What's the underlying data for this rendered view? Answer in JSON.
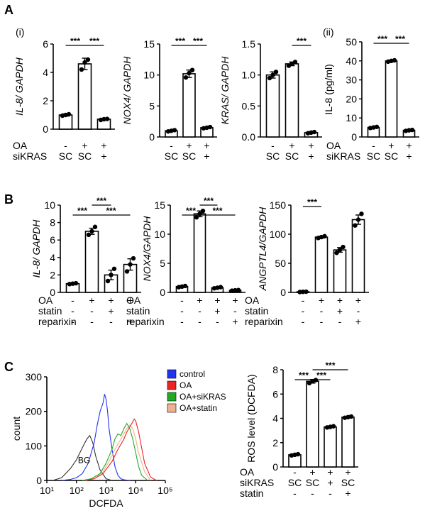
{
  "figure": {
    "labels": {
      "A": "A",
      "B": "B",
      "C": "C"
    },
    "sublabels": {
      "i": "(i)",
      "ii": "(ii)"
    }
  },
  "chart_data": [
    {
      "id": "A1",
      "type": "bar",
      "ylabel": "IL-8/ GAPDH",
      "ylabel_italic": true,
      "ylim": [
        0,
        6
      ],
      "yticks": [
        "0",
        "2",
        "4",
        "6"
      ],
      "values": [
        1.0,
        4.6,
        0.7
      ],
      "errors": [
        0.08,
        0.4,
        0.06
      ],
      "points": [
        [
          0.95,
          1.0,
          1.05
        ],
        [
          4.2,
          4.7,
          4.9
        ],
        [
          0.65,
          0.7,
          0.72
        ]
      ],
      "rows": [
        {
          "label": "OA",
          "values": [
            "-",
            "+",
            "+"
          ]
        },
        {
          "label": "siKRAS",
          "values": [
            "SC",
            "SC",
            "+"
          ]
        }
      ],
      "sig": [
        {
          "from": 0,
          "to": 1,
          "text": "***",
          "level": 0
        },
        {
          "from": 1,
          "to": 2,
          "text": "***",
          "level": 0
        }
      ]
    },
    {
      "id": "A2",
      "type": "bar",
      "ylabel": "NOX4/ GAPDH",
      "ylabel_italic": true,
      "ylim": [
        0,
        15
      ],
      "yticks": [
        "0",
        "5",
        "10",
        "15"
      ],
      "values": [
        1.0,
        10.2,
        1.5
      ],
      "errors": [
        0.1,
        0.6,
        0.1
      ],
      "points": [
        [
          0.9,
          1.0,
          1.1
        ],
        [
          9.6,
          10.3,
          10.8
        ],
        [
          1.4,
          1.5,
          1.6
        ]
      ],
      "rows": [
        {
          "label": "OA",
          "values": [
            "-",
            "+",
            "+"
          ]
        },
        {
          "label": "siKRAS",
          "values": [
            "SC",
            "SC",
            "+"
          ]
        }
      ],
      "sig": [
        {
          "from": 0,
          "to": 1,
          "text": "***",
          "level": 0
        },
        {
          "from": 1,
          "to": 2,
          "text": "***",
          "level": 0
        }
      ]
    },
    {
      "id": "A3",
      "type": "bar",
      "ylabel": "KRAS/ GAPDH",
      "ylabel_italic": true,
      "ylim": [
        0,
        1.5
      ],
      "yticks": [
        "0.0",
        "0.5",
        "1.0",
        "1.5"
      ],
      "values": [
        1.0,
        1.18,
        0.07
      ],
      "errors": [
        0.05,
        0.03,
        0.01
      ],
      "points": [
        [
          0.95,
          1.0,
          1.05
        ],
        [
          1.15,
          1.18,
          1.21
        ],
        [
          0.06,
          0.07,
          0.08
        ]
      ],
      "rows": [
        {
          "label": "OA",
          "values": [
            "-",
            "+",
            "+"
          ]
        },
        {
          "label": "siKRAS",
          "values": [
            "SC",
            "SC",
            "+"
          ]
        }
      ],
      "sig": [
        {
          "from": 1,
          "to": 2,
          "text": "***",
          "level": 0
        }
      ]
    },
    {
      "id": "A4",
      "type": "bar",
      "ylabel": "IL-8 (pg/ml)",
      "ylabel_italic": false,
      "ylim": [
        0,
        50
      ],
      "yticks": [
        "0",
        "10",
        "20",
        "30",
        "40",
        "50"
      ],
      "values": [
        5.0,
        40.0,
        3.5
      ],
      "errors": [
        0.4,
        0.4,
        0.3
      ],
      "points": [
        [
          4.7,
          5.0,
          5.3
        ],
        [
          39.6,
          40.0,
          40.3
        ],
        [
          3.2,
          3.5,
          3.7
        ]
      ],
      "rows": [
        {
          "label": "OA",
          "values": [
            "-",
            "+",
            "+"
          ]
        },
        {
          "label": "siKRAS",
          "values": [
            "SC",
            "SC",
            "+"
          ]
        }
      ],
      "sig": [
        {
          "from": 0,
          "to": 1,
          "text": "***",
          "level": 0
        },
        {
          "from": 1,
          "to": 2,
          "text": "***",
          "level": 0
        }
      ]
    },
    {
      "id": "B1",
      "type": "bar",
      "ylabel": "IL-8/ GAPDH",
      "ylabel_italic": true,
      "ylim": [
        0,
        10
      ],
      "yticks": [
        "0",
        "2",
        "4",
        "6",
        "8",
        "10"
      ],
      "values": [
        1.0,
        7.0,
        2.0,
        3.2
      ],
      "errors": [
        0.08,
        0.35,
        0.55,
        0.65
      ],
      "points": [
        [
          0.95,
          1.0,
          1.05
        ],
        [
          6.6,
          7.0,
          7.5
        ],
        [
          1.3,
          2.0,
          2.7
        ],
        [
          2.4,
          3.2,
          3.9
        ]
      ],
      "rows": [
        {
          "label": "OA",
          "values": [
            "-",
            "+",
            "+",
            "+"
          ]
        },
        {
          "label": "statin",
          "values": [
            "-",
            "-",
            "+",
            "-"
          ]
        },
        {
          "label": "reparixin",
          "values": [
            "-",
            "-",
            "-",
            "+"
          ]
        }
      ],
      "sig": [
        {
          "from": 0,
          "to": 1,
          "text": "***",
          "level": 0
        },
        {
          "from": 1,
          "to": 2,
          "text": "***",
          "level": 1
        },
        {
          "from": 1,
          "to": 3,
          "text": "***",
          "level": 0
        }
      ]
    },
    {
      "id": "B2",
      "type": "bar",
      "ylabel": "NOX4/GAPDH",
      "ylabel_italic": true,
      "ylim": [
        0,
        15
      ],
      "yticks": [
        "0",
        "5",
        "10",
        "15"
      ],
      "values": [
        1.0,
        13.5,
        0.8,
        0.35
      ],
      "errors": [
        0.1,
        0.5,
        0.08,
        0.08
      ],
      "points": [
        [
          0.9,
          1.0,
          1.1
        ],
        [
          12.9,
          13.5,
          14.0
        ],
        [
          0.7,
          0.8,
          0.9
        ],
        [
          0.3,
          0.35,
          0.4
        ]
      ],
      "rows": [
        {
          "label": "OA",
          "values": [
            "-",
            "+",
            "+",
            "+"
          ]
        },
        {
          "label": "statin",
          "values": [
            "-",
            "-",
            "+",
            "-"
          ]
        },
        {
          "label": "reparixin",
          "values": [
            "-",
            "-",
            "-",
            "+"
          ]
        }
      ],
      "sig": [
        {
          "from": 0,
          "to": 1,
          "text": "***",
          "level": 0
        },
        {
          "from": 1,
          "to": 2,
          "text": "***",
          "level": 1
        },
        {
          "from": 1,
          "to": 3,
          "text": "***",
          "level": 0
        }
      ]
    },
    {
      "id": "B3",
      "type": "bar",
      "ylabel": "ANGPTL4/GAPDH",
      "ylabel_italic": true,
      "ylim": [
        0,
        150
      ],
      "yticks": [
        "0",
        "50",
        "100",
        "150"
      ],
      "values": [
        1.0,
        95.0,
        73.0,
        125.0
      ],
      "errors": [
        0.3,
        1.5,
        4.0,
        8.0
      ],
      "points": [
        [
          0.6,
          1.0,
          1.2
        ],
        [
          93.5,
          95.0,
          96.5
        ],
        [
          68.0,
          73.0,
          78.0
        ],
        [
          115.0,
          125.0,
          135.0
        ]
      ],
      "rows": [
        {
          "label": "OA",
          "values": [
            "-",
            "+",
            "+",
            "+"
          ]
        },
        {
          "label": "statin",
          "values": [
            "-",
            "-",
            "+",
            "-"
          ]
        },
        {
          "label": "reparixin",
          "values": [
            "-",
            "-",
            "-",
            "+"
          ]
        }
      ],
      "sig": [
        {
          "from": 0,
          "to": 1,
          "text": "***",
          "level": 0
        }
      ]
    },
    {
      "id": "C1",
      "type": "line",
      "ylabel": "count",
      "xlabel": "DCFDA",
      "ylim": [
        0,
        300
      ],
      "yticks": [
        "0",
        "100",
        "200",
        "300"
      ],
      "xlim": [
        1,
        5
      ],
      "xticks": [
        "10¹",
        "10²",
        "10³",
        "10⁴",
        "10⁵"
      ],
      "annotation": "BG",
      "series": [
        {
          "name": "control",
          "color": "#2233ee",
          "x": [
            1.5,
            1.8,
            2.0,
            2.2,
            2.4,
            2.6,
            2.7,
            2.8,
            2.9,
            2.95,
            3.0,
            3.05,
            3.1,
            3.2,
            3.3,
            3.4,
            3.5,
            3.6,
            3.8
          ],
          "y": [
            0,
            3,
            8,
            20,
            50,
            110,
            160,
            200,
            225,
            250,
            235,
            200,
            150,
            90,
            40,
            15,
            5,
            2,
            0
          ]
        },
        {
          "name": "OA",
          "color": "#ee2222",
          "x": [
            2.3,
            2.6,
            2.9,
            3.2,
            3.4,
            3.6,
            3.7,
            3.8,
            3.9,
            3.95,
            4.0,
            4.1,
            4.2,
            4.3,
            4.5,
            4.7
          ],
          "y": [
            0,
            5,
            20,
            55,
            90,
            120,
            140,
            155,
            170,
            178,
            172,
            140,
            95,
            50,
            10,
            0
          ]
        },
        {
          "name": "OA+siKRAS",
          "color": "#22aa22",
          "x": [
            2.2,
            2.5,
            2.8,
            3.0,
            3.2,
            3.3,
            3.4,
            3.5,
            3.6,
            3.7,
            3.8,
            3.9,
            4.0,
            4.1,
            4.2,
            4.4
          ],
          "y": [
            0,
            5,
            20,
            50,
            90,
            120,
            135,
            130,
            150,
            165,
            150,
            120,
            80,
            40,
            15,
            0
          ]
        },
        {
          "name": "OA+statin",
          "color": "#f0b090",
          "x": [
            2.3,
            2.6,
            2.9,
            3.1,
            3.3,
            3.5,
            3.6,
            3.7,
            3.8,
            3.9,
            4.0,
            4.1,
            4.3,
            4.5
          ],
          "y": [
            0,
            5,
            25,
            55,
            90,
            120,
            135,
            150,
            160,
            150,
            120,
            80,
            25,
            0
          ]
        },
        {
          "name": "BG",
          "color": "#333333",
          "x": [
            1.2,
            1.5,
            1.8,
            2.0,
            2.2,
            2.35,
            2.45,
            2.55,
            2.65,
            2.8,
            3.0,
            3.2
          ],
          "y": [
            0,
            8,
            35,
            60,
            95,
            120,
            130,
            110,
            70,
            30,
            5,
            0
          ]
        }
      ]
    },
    {
      "id": "C2",
      "type": "bar",
      "ylabel": "ROS level (DCFDA)",
      "ylabel_italic": false,
      "ylim": [
        0,
        8
      ],
      "yticks": [
        "0",
        "2",
        "4",
        "6",
        "8"
      ],
      "values": [
        1.0,
        7.05,
        3.3,
        4.1
      ],
      "errors": [
        0.05,
        0.15,
        0.06,
        0.06
      ],
      "points": [
        [
          0.95,
          1.0,
          1.05
        ],
        [
          6.9,
          7.05,
          7.15
        ],
        [
          3.25,
          3.3,
          3.35
        ],
        [
          4.05,
          4.1,
          4.15
        ]
      ],
      "rows": [
        {
          "label": "OA",
          "values": [
            "-",
            "+",
            "+",
            "+"
          ]
        },
        {
          "label": "siKRAS",
          "values": [
            "SC",
            "SC",
            "+",
            "SC"
          ]
        },
        {
          "label": "statin",
          "values": [
            "-",
            "-",
            "-",
            "+"
          ]
        }
      ],
      "sig": [
        {
          "from": 0,
          "to": 1,
          "text": "***",
          "level": 0
        },
        {
          "from": 1,
          "to": 2,
          "text": "***",
          "level": 0
        },
        {
          "from": 1,
          "to": 3,
          "text": "***",
          "level": 1
        }
      ]
    }
  ]
}
